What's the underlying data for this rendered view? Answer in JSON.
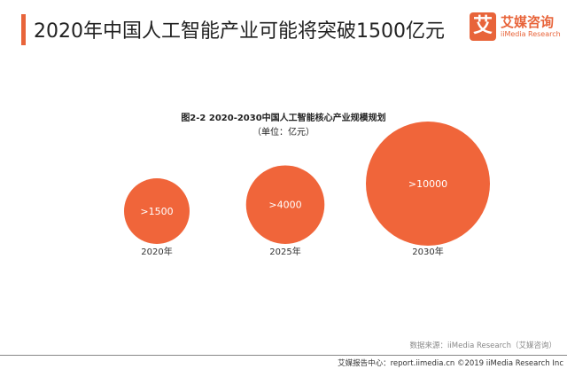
{
  "header": {
    "title": "2020年中国人工智能产业可能将突破1500亿元"
  },
  "logo": {
    "icon_char": "艾",
    "name_cn": "艾媒咨询",
    "name_en": "iiMedia Research"
  },
  "chart_data": {
    "type": "bubble",
    "title": "图2-2 2020-2030中国人工智能核心产业规模规划",
    "subtitle": "（单位：亿元）",
    "categories": [
      "2020年",
      "2025年",
      "2030年"
    ],
    "values": [
      1500,
      4000,
      10000
    ],
    "data_labels": [
      ">1500",
      ">4000",
      ">10000"
    ],
    "color": "#f0653a"
  },
  "source": "数据来源：iiMedia Research（艾媒咨询）",
  "footer": "艾媒报告中心：report.iimedia.cn  ©2019  iiMedia Research  Inc"
}
